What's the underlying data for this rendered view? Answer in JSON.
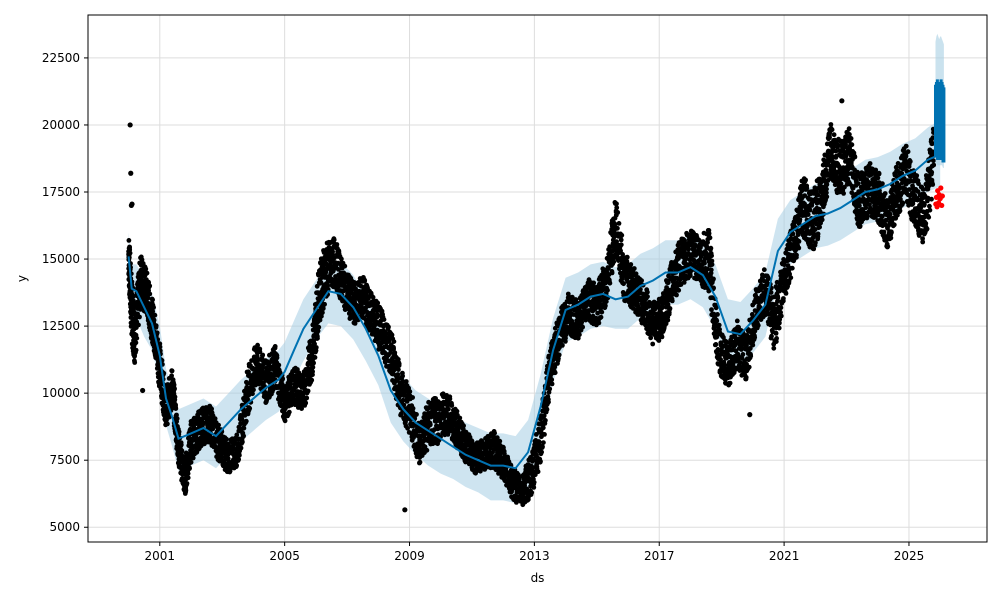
{
  "chart_data": {
    "type": "scatter",
    "title": "",
    "xlabel": "ds",
    "ylabel": "y",
    "xlim": [
      1998.7,
      2027.5
    ],
    "ylim": [
      4450,
      24100
    ],
    "x_ticks": [
      2001,
      2005,
      2009,
      2013,
      2017,
      2021,
      2025
    ],
    "x_tick_labels": [
      "2001",
      "2005",
      "2009",
      "2013",
      "2017",
      "2021",
      "2025"
    ],
    "y_ticks": [
      5000,
      7500,
      10000,
      12500,
      15000,
      17500,
      20000,
      22500
    ],
    "y_tick_labels": [
      "5000",
      "7500",
      "10000",
      "12500",
      "15000",
      "17500",
      "20000",
      "22500"
    ],
    "grid": true,
    "colors": {
      "observed": "#000000",
      "forecast_line": "#0072B2",
      "interval": "#A6CEE3",
      "anomaly": "#FF0000",
      "grid": "#dddddd"
    },
    "series": [
      {
        "role": "observed",
        "x": [
          2000.0,
          2000.1,
          2000.2,
          2000.4,
          2000.6,
          2000.8,
          2001.0,
          2001.2,
          2001.4,
          2001.6,
          2001.8,
          2002.0,
          2002.3,
          2002.6,
          2002.9,
          2003.2,
          2003.5,
          2003.8,
          2004.1,
          2004.4,
          2004.7,
          2005.0,
          2005.3,
          2005.6,
          2005.9,
          2006.1,
          2006.3,
          2006.6,
          2006.9,
          2007.2,
          2007.5,
          2007.8,
          2008.1,
          2008.4,
          2008.7,
          2009.0,
          2009.3,
          2009.6,
          2009.9,
          2010.2,
          2010.5,
          2010.8,
          2011.1,
          2011.4,
          2011.7,
          2012.0,
          2012.3,
          2012.6,
          2012.9,
          2013.2,
          2013.5,
          2013.8,
          2014.1,
          2014.4,
          2014.7,
          2015.0,
          2015.3,
          2015.6,
          2015.9,
          2016.2,
          2016.5,
          2016.8,
          2017.1,
          2017.4,
          2017.7,
          2018.0,
          2018.3,
          2018.6,
          2018.9,
          2019.2,
          2019.5,
          2019.8,
          2020.1,
          2020.4,
          2020.7,
          2021.0,
          2021.3,
          2021.6,
          2021.9,
          2022.2,
          2022.5,
          2022.8,
          2023.1,
          2023.4,
          2023.7,
          2024.0,
          2024.3,
          2024.6,
          2024.9,
          2025.2,
          2025.5,
          2025.8
        ],
        "y": [
          15200,
          13100,
          12200,
          14300,
          13600,
          12500,
          11000,
          9400,
          10200,
          8000,
          6800,
          8200,
          8700,
          8900,
          8100,
          7600,
          7900,
          10000,
          11100,
          10400,
          11000,
          9600,
          10300,
          10000,
          11600,
          13600,
          14500,
          14900,
          14000,
          13300,
          13600,
          12900,
          12300,
          11500,
          10100,
          9400,
          8100,
          8800,
          9000,
          9300,
          8700,
          8000,
          7600,
          7700,
          7900,
          7400,
          6600,
          6400,
          6900,
          8300,
          10800,
          12200,
          13000,
          12700,
          13600,
          13200,
          14100,
          16200,
          14300,
          13900,
          13300,
          12600,
          12800,
          14100,
          14900,
          15200,
          15000,
          14900,
          11700,
          11000,
          11800,
          11300,
          13100,
          13800,
          12600,
          14300,
          15500,
          17000,
          16400,
          17200,
          19100,
          18300,
          18800,
          17100,
          17600,
          17400,
          16300,
          17500,
          18300,
          17100,
          16600,
          19000
        ],
        "spread": [
          900,
          1200,
          1100,
          1000,
          900,
          800,
          900,
          700,
          800,
          700,
          700,
          800,
          700,
          700,
          700,
          600,
          600,
          900,
          800,
          800,
          800,
          700,
          700,
          700,
          1000,
          1100,
          1100,
          900,
          800,
          800,
          800,
          800,
          900,
          900,
          900,
          900,
          800,
          900,
          900,
          800,
          700,
          600,
          600,
          600,
          700,
          600,
          600,
          600,
          800,
          900,
          900,
          800,
          800,
          700,
          800,
          800,
          900,
          1100,
          900,
          800,
          800,
          800,
          800,
          900,
          900,
          900,
          900,
          1200,
          900,
          800,
          900,
          900,
          800,
          900,
          1200,
          900,
          900,
          1100,
          1200,
          1100,
          1100,
          1100,
          1100,
          1000,
          1000,
          1000,
          1000,
          1000,
          1000,
          1100,
          1100,
          1200
        ]
      },
      {
        "role": "forecast",
        "x": [
          2000.0,
          2000.1,
          2000.25,
          2000.5,
          2000.75,
          2001.0,
          2001.2,
          2001.4,
          2001.6,
          2002.0,
          2002.4,
          2002.8,
          2003.2,
          2003.6,
          2004.0,
          2004.4,
          2004.8,
          2005.0,
          2005.3,
          2005.6,
          2006.0,
          2006.4,
          2006.8,
          2007.2,
          2007.6,
          2008.0,
          2008.4,
          2008.8,
          2009.2,
          2009.6,
          2010.0,
          2010.4,
          2010.8,
          2011.2,
          2011.6,
          2012.0,
          2012.4,
          2012.8,
          2013.2,
          2013.6,
          2014.0,
          2014.4,
          2014.8,
          2015.2,
          2015.6,
          2016.0,
          2016.4,
          2016.8,
          2017.2,
          2017.6,
          2018.0,
          2018.4,
          2018.8,
          2019.2,
          2019.6,
          2020.0,
          2020.4,
          2020.8,
          2021.2,
          2021.6,
          2022.0,
          2022.4,
          2022.8,
          2023.2,
          2023.6,
          2024.0,
          2024.4,
          2024.8,
          2025.2,
          2025.6,
          2026.0
        ],
        "y": [
          15100,
          13900,
          13800,
          13200,
          12600,
          11400,
          9800,
          9100,
          8300,
          8500,
          8700,
          8400,
          8900,
          9400,
          9800,
          10200,
          10500,
          10800,
          11600,
          12400,
          13100,
          13800,
          13700,
          13200,
          12400,
          11400,
          10100,
          9400,
          8900,
          8600,
          8300,
          8000,
          7700,
          7500,
          7300,
          7300,
          7200,
          7800,
          9500,
          11600,
          13100,
          13300,
          13600,
          13700,
          13500,
          13600,
          14000,
          14200,
          14500,
          14500,
          14700,
          14400,
          13600,
          12300,
          12200,
          12700,
          13300,
          15300,
          16000,
          16300,
          16600,
          16700,
          16900,
          17200,
          17500,
          17600,
          17800,
          18100,
          18300,
          18700,
          18900
        ],
        "yhat_lower": [
          14200,
          13000,
          12800,
          12100,
          11600,
          10400,
          8800,
          8000,
          7100,
          7300,
          7500,
          7200,
          7700,
          8200,
          8600,
          9000,
          9300,
          9600,
          10500,
          11200,
          12000,
          12600,
          12500,
          12000,
          11200,
          10300,
          8900,
          8200,
          7700,
          7300,
          7000,
          6800,
          6500,
          6300,
          6000,
          6000,
          5900,
          6500,
          8200,
          10400,
          11900,
          12100,
          12400,
          12500,
          12400,
          12400,
          12800,
          13000,
          13300,
          13300,
          13500,
          13200,
          12400,
          11100,
          11000,
          11500,
          12100,
          14100,
          14800,
          15100,
          15400,
          15500,
          15700,
          16000,
          16300,
          16400,
          16600,
          16900,
          17100,
          17500,
          17700
        ],
        "yhat_upper": [
          16000,
          14800,
          14800,
          14300,
          13700,
          12500,
          10900,
          10200,
          9400,
          9600,
          9800,
          9500,
          10000,
          10500,
          10900,
          11300,
          11600,
          11900,
          12700,
          13500,
          14200,
          14900,
          14900,
          14400,
          13600,
          12600,
          11300,
          10600,
          10100,
          9800,
          9500,
          9200,
          8900,
          8700,
          8500,
          8500,
          8400,
          9000,
          10700,
          12800,
          14300,
          14500,
          14800,
          14900,
          14700,
          14800,
          15200,
          15400,
          15700,
          15700,
          15900,
          15600,
          14800,
          13500,
          13400,
          13900,
          14500,
          16500,
          17200,
          17500,
          17800,
          17900,
          18100,
          18400,
          18700,
          18800,
          19000,
          19300,
          19500,
          19900,
          20200
        ]
      },
      {
        "role": "future_forecast",
        "x": [
          2025.85,
          2025.88,
          2025.91,
          2025.94,
          2025.97,
          2026.0,
          2026.03,
          2026.06,
          2026.09,
          2026.12
        ],
        "y_min": [
          18800,
          18800,
          18700,
          18700,
          18700,
          18700,
          18700,
          18700,
          18600,
          18600
        ],
        "y_max": [
          21500,
          21600,
          21700,
          21600,
          21500,
          21600,
          21700,
          21600,
          21500,
          21400
        ],
        "yhat_upper": [
          23100,
          23300,
          23400,
          23300,
          23200,
          23300,
          23300,
          23200,
          23100,
          23000
        ]
      },
      {
        "role": "anomalies",
        "x": [
          2025.86,
          2025.88,
          2025.9,
          2025.92,
          2025.95,
          2025.97,
          2026.0,
          2026.02,
          2026.05,
          2026.07
        ],
        "y": [
          17050,
          17300,
          16950,
          17550,
          17100,
          17400,
          17250,
          17650,
          17000,
          17350
        ]
      }
    ],
    "outliers": [
      {
        "x": 2000.05,
        "y": 20000
      },
      {
        "x": 2000.07,
        "y": 18200
      },
      {
        "x": 2000.09,
        "y": 17000
      },
      {
        "x": 2000.11,
        "y": 17050
      },
      {
        "x": 2000.45,
        "y": 10100
      },
      {
        "x": 2008.85,
        "y": 5650
      },
      {
        "x": 2019.9,
        "y": 9200
      },
      {
        "x": 2022.85,
        "y": 20900
      }
    ]
  }
}
